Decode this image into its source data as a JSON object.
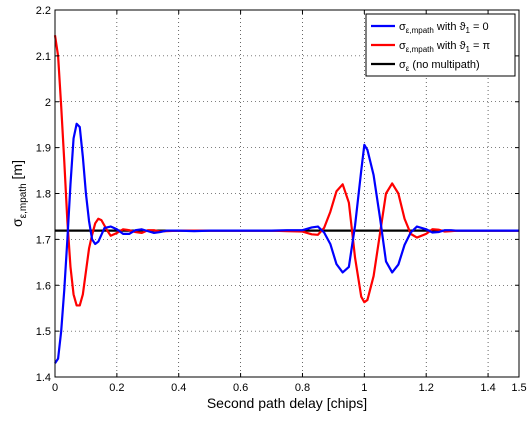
{
  "chart_data": {
    "type": "line",
    "xlabel": "Second path delay [chips]",
    "ylabel": "σε,mpath [m]",
    "ylabel_main": "σ",
    "ylabel_sub": "ε,mpath",
    "xlabel_unit": "",
    "xlim": [
      0,
      1.5
    ],
    "ylim": [
      1.4,
      2.2
    ],
    "xticks": [
      0,
      0.2,
      0.4,
      0.6,
      0.8,
      1,
      1.2,
      1.4,
      1.5
    ],
    "xtick_labels": [
      "0",
      "0.2",
      "0.4",
      "0.6",
      "0.8",
      "1",
      "1.2",
      "1.4",
      "1.5"
    ],
    "yticks": [
      1.4,
      1.5,
      1.6,
      1.7,
      1.8,
      1.9,
      2,
      2.1,
      2.2
    ],
    "ytick_labels": [
      "1.4",
      "1.5",
      "1.6",
      "1.7",
      "1.8",
      "1.9",
      "2",
      "2.1",
      "2.2"
    ],
    "grid": true,
    "legend_position": "top-right",
    "series": [
      {
        "name": "σε,mpath with ϑ1 = 0",
        "legend_main": "σ",
        "legend_sub": "ε,mpath",
        "legend_tail": " with ϑ",
        "legend_sub2": "1",
        "legend_end": " = 0",
        "color": "#0000ff",
        "x": [
          0,
          0.01,
          0.02,
          0.03,
          0.04,
          0.05,
          0.06,
          0.07,
          0.08,
          0.09,
          0.1,
          0.11,
          0.12,
          0.13,
          0.14,
          0.15,
          0.16,
          0.18,
          0.2,
          0.22,
          0.24,
          0.26,
          0.28,
          0.3,
          0.32,
          0.34,
          0.36,
          0.4,
          0.45,
          0.5,
          0.6,
          0.7,
          0.75,
          0.8,
          0.83,
          0.85,
          0.87,
          0.89,
          0.91,
          0.93,
          0.95,
          0.97,
          0.99,
          1.0,
          1.01,
          1.03,
          1.05,
          1.07,
          1.09,
          1.11,
          1.13,
          1.15,
          1.17,
          1.2,
          1.22,
          1.24,
          1.26,
          1.28,
          1.3,
          1.35,
          1.4,
          1.45,
          1.5
        ],
        "y": [
          1.43,
          1.44,
          1.5,
          1.59,
          1.7,
          1.82,
          1.92,
          1.952,
          1.945,
          1.88,
          1.8,
          1.74,
          1.7,
          1.69,
          1.695,
          1.71,
          1.725,
          1.728,
          1.722,
          1.712,
          1.712,
          1.72,
          1.722,
          1.718,
          1.714,
          1.716,
          1.719,
          1.719,
          1.718,
          1.719,
          1.719,
          1.719,
          1.72,
          1.72,
          1.726,
          1.728,
          1.715,
          1.69,
          1.646,
          1.628,
          1.64,
          1.73,
          1.85,
          1.906,
          1.895,
          1.84,
          1.75,
          1.652,
          1.628,
          1.645,
          1.688,
          1.715,
          1.728,
          1.722,
          1.715,
          1.716,
          1.72,
          1.72,
          1.719,
          1.719,
          1.719,
          1.719,
          1.719
        ]
      },
      {
        "name": "σε,mpath with ϑ1 = π",
        "legend_main": "σ",
        "legend_sub": "ε,mpath",
        "legend_tail": " with ϑ",
        "legend_sub2": "1",
        "legend_end": " = π",
        "color": "#ff0000",
        "x": [
          0,
          0.01,
          0.02,
          0.03,
          0.04,
          0.05,
          0.06,
          0.07,
          0.08,
          0.09,
          0.1,
          0.11,
          0.12,
          0.13,
          0.14,
          0.15,
          0.16,
          0.17,
          0.18,
          0.2,
          0.22,
          0.24,
          0.26,
          0.28,
          0.3,
          0.32,
          0.34,
          0.36,
          0.4,
          0.45,
          0.5,
          0.6,
          0.7,
          0.75,
          0.8,
          0.83,
          0.85,
          0.87,
          0.89,
          0.91,
          0.93,
          0.95,
          0.97,
          0.99,
          1.0,
          1.01,
          1.03,
          1.05,
          1.07,
          1.09,
          1.11,
          1.13,
          1.15,
          1.17,
          1.2,
          1.22,
          1.24,
          1.26,
          1.28,
          1.3,
          1.35,
          1.4,
          1.45,
          1.5
        ],
        "y": [
          2.145,
          2.1,
          1.99,
          1.87,
          1.74,
          1.64,
          1.58,
          1.556,
          1.556,
          1.58,
          1.63,
          1.68,
          1.71,
          1.735,
          1.745,
          1.742,
          1.73,
          1.718,
          1.708,
          1.714,
          1.722,
          1.72,
          1.716,
          1.714,
          1.72,
          1.72,
          1.717,
          1.718,
          1.719,
          1.719,
          1.719,
          1.719,
          1.719,
          1.718,
          1.717,
          1.711,
          1.71,
          1.725,
          1.76,
          1.805,
          1.82,
          1.78,
          1.66,
          1.575,
          1.563,
          1.568,
          1.62,
          1.71,
          1.8,
          1.822,
          1.8,
          1.745,
          1.712,
          1.704,
          1.712,
          1.722,
          1.721,
          1.717,
          1.718,
          1.719,
          1.719,
          1.719,
          1.719,
          1.719
        ]
      },
      {
        "name": "σε (no multipath)",
        "legend_main": "σ",
        "legend_sub": "ε",
        "legend_tail": " (no multipath)",
        "legend_sub2": "",
        "legend_end": "",
        "color": "#000000",
        "x": [
          0,
          1.5
        ],
        "y": [
          1.719,
          1.719
        ]
      }
    ]
  }
}
